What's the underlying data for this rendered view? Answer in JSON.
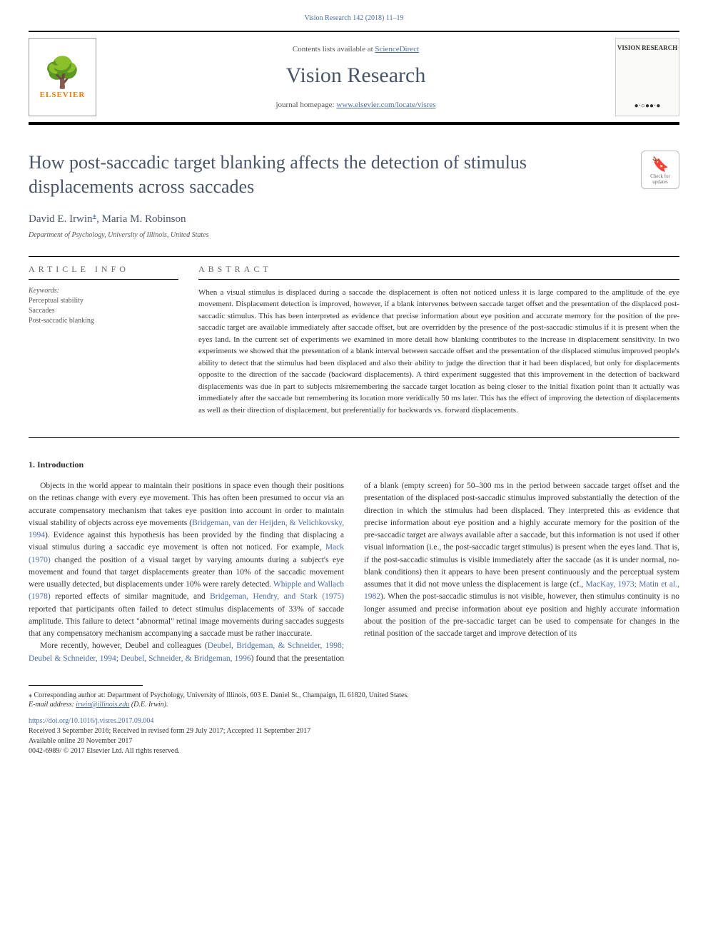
{
  "top_citation": "Vision Research 142 (2018) 11–19",
  "header": {
    "contents_prefix": "Contents lists available at ",
    "contents_link": "ScienceDirect",
    "journal_name": "Vision Research",
    "homepage_prefix": "journal homepage: ",
    "homepage_url": "www.elsevier.com/locate/visres",
    "publisher_name": "ELSEVIER",
    "cover_title": "VISION RESEARCH"
  },
  "check_updates": {
    "line1": "Check for",
    "line2": "updates"
  },
  "article": {
    "title": "How post-saccadic target blanking affects the detection of stimulus displacements across saccades",
    "authors": "David E. Irwin",
    "author2": ", Maria M. Robinson",
    "corr_mark": "⁎",
    "affiliation": "Department of Psychology, University of Illinois, United States"
  },
  "info_labels": {
    "article_info": "ARTICLE INFO",
    "abstract": "ABSTRACT",
    "keywords_label": "Keywords:"
  },
  "keywords": [
    "Perceptual stability",
    "Saccades",
    "Post-saccadic blanking"
  ],
  "abstract": "When a visual stimulus is displaced during a saccade the displacement is often not noticed unless it is large compared to the amplitude of the eye movement. Displacement detection is improved, however, if a blank intervenes between saccade target offset and the presentation of the displaced post-saccadic stimulus. This has been interpreted as evidence that precise information about eye position and accurate memory for the position of the pre-saccadic target are available immediately after saccade offset, but are overridden by the presence of the post-saccadic stimulus if it is present when the eyes land. In the current set of experiments we examined in more detail how blanking contributes to the increase in displacement sensitivity. In two experiments we showed that the presentation of a blank interval between saccade offset and the presentation of the displaced stimulus improved people's ability to detect that the stimulus had been displaced and also their ability to judge the direction that it had been displaced, but only for displacements opposite to the direction of the saccade (backward displacements). A third experiment suggested that this improvement in the detection of backward displacements was due in part to subjects misremembering the saccade target location as being closer to the initial fixation point than it actually was immediately after the saccade but remembering its location more veridically 50 ms later. This has the effect of improving the detection of displacements as well as their direction of displacement, but preferentially for backwards vs. forward displacements.",
  "body": {
    "heading": "1. Introduction",
    "p1_pre": "Objects in the world appear to maintain their positions in space even though their positions on the retinas change with every eye movement. This has often been presumed to occur via an accurate compensatory mechanism that takes eye position into account in order to maintain visual stability of objects across eye movements (",
    "p1_ref1": "Bridgeman, van der Heijden, & Velichkovsky, 1994",
    "p1_mid1": "). Evidence against this hypothesis has been provided by the finding that displacing a visual stimulus during a saccadic eye movement is often not noticed. For example, ",
    "p1_ref2": "Mack (1970)",
    "p1_mid2": " changed the position of a visual target by varying amounts during a subject's eye movement and found that target displacements greater than 10% of the saccadic movement were usually detected, but displacements under 10% were rarely detected. ",
    "p1_ref3": "Whipple and Wallach (1978)",
    "p1_mid3": " reported effects of similar magnitude, and ",
    "p1_ref4": "Bridgeman, Hendry, and Stark (1975)",
    "p1_post": " reported that participants often failed to detect stimulus displacements of 33% of saccade amplitude. This failure to detect \"abnormal\" retinal image movements during saccades suggests that any compensatory mechanism accompanying a saccade must be rather inaccurate.",
    "p2_pre": "More recently, however, Deubel and colleagues (",
    "p2_ref1": "Deubel, Bridgeman, & Schneider, 1998; Deubel & Schneider, 1994; Deubel, Schneider, & Bridgeman, 1996",
    "p2_mid1": ") found that the presentation of a blank (empty screen) for 50–300 ms in the period between saccade target offset and the presentation of the displaced post-saccadic stimulus improved substantially the detection of the direction in which the stimulus had been displaced. They interpreted this as evidence that precise information about eye position and a highly accurate memory for the position of the pre-saccadic target are always available after a saccade, but this information is not used if other visual information (i.e., the post-saccadic target stimulus) is present when the eyes land. That is, if the post-saccadic stimulus is visible immediately after the saccade (as it is under normal, no-blank conditions) then it appears to have been present continuously and the perceptual system assumes that it did not move unless the displacement is large (cf., ",
    "p2_ref2": "MacKay, 1973; Matin et al., 1982",
    "p2_post": "). When the post-saccadic stimulus is not visible, however, then stimulus continuity is no longer assumed and precise information about eye position and highly accurate information about the position of the pre-saccadic target can be used to compensate for changes in the retinal position of the saccade target and improve detection of its"
  },
  "footer": {
    "corr_note": "⁎ Corresponding author at: Department of Psychology, University of Illinois, 603 E. Daniel St., Champaign, IL 61820, United States.",
    "email_label": "E-mail address: ",
    "email": "irwin@illinois.edu",
    "email_suffix": " (D.E. Irwin).",
    "doi": "https://doi.org/10.1016/j.visres.2017.09.004",
    "dates": "Received 3 September 2016; Received in revised form 29 July 2017; Accepted 11 September 2017",
    "online": "Available online 20 November 2017",
    "copyright": "0042-6989/ © 2017 Elsevier Ltd. All rights reserved."
  },
  "colors": {
    "link": "#4a6da8",
    "title_gray": "#4a5568",
    "publisher_orange": "#ff7800"
  }
}
